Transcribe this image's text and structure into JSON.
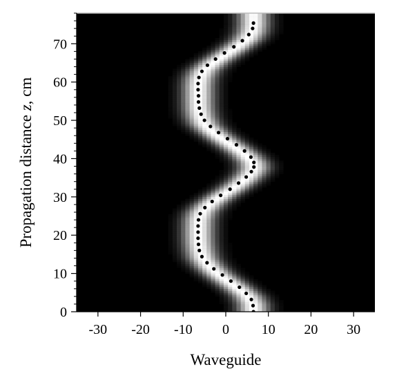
{
  "chart_data": {
    "type": "heatmap",
    "title": "",
    "xlabel": "Waveguide",
    "ylabel": "Propagation distance",
    "ylabel_italic": "z",
    "ylabel_unit": ", cm",
    "xlim": [
      -35,
      35
    ],
    "ylim": [
      0,
      78
    ],
    "x_ticks": [
      -30,
      -20,
      -10,
      0,
      10,
      20,
      30
    ],
    "x_tick_labels": [
      "-30",
      "-20",
      "-10",
      "0",
      "10",
      "20",
      "30"
    ],
    "y_ticks": [
      0,
      10,
      20,
      30,
      40,
      50,
      60,
      70
    ],
    "y_tick_labels": [
      "0",
      "10",
      "20",
      "30",
      "40",
      "50",
      "60",
      "70"
    ],
    "y_minor_step": 2,
    "grid": false,
    "colormap": [
      "#000000",
      "#ffffff"
    ],
    "beam_width": 2.6,
    "beam_path": [
      {
        "z": 0,
        "x": 6.5
      },
      {
        "z": 2,
        "x": 6.3
      },
      {
        "z": 4,
        "x": 5.2
      },
      {
        "z": 6,
        "x": 3.0
      },
      {
        "z": 8,
        "x": 0.5
      },
      {
        "z": 10,
        "x": -2.0
      },
      {
        "z": 12,
        "x": -4.0
      },
      {
        "z": 14,
        "x": -5.4
      },
      {
        "z": 16,
        "x": -6.0
      },
      {
        "z": 18,
        "x": -6.3
      },
      {
        "z": 20,
        "x": -6.4
      },
      {
        "z": 22,
        "x": -6.4
      },
      {
        "z": 24,
        "x": -6.3
      },
      {
        "z": 26,
        "x": -5.6
      },
      {
        "z": 28,
        "x": -3.9
      },
      {
        "z": 30,
        "x": -1.4
      },
      {
        "z": 32,
        "x": 1.4
      },
      {
        "z": 34,
        "x": 3.9
      },
      {
        "z": 36,
        "x": 5.8
      },
      {
        "z": 37.5,
        "x": 6.6
      },
      {
        "z": 39,
        "x": 6.3
      },
      {
        "z": 41,
        "x": 4.6
      },
      {
        "z": 43,
        "x": 2.1
      },
      {
        "z": 45,
        "x": -0.6
      },
      {
        "z": 47,
        "x": -3.1
      },
      {
        "z": 49,
        "x": -5.0
      },
      {
        "z": 51,
        "x": -5.9
      },
      {
        "z": 53,
        "x": -6.3
      },
      {
        "z": 55,
        "x": -6.4
      },
      {
        "z": 57,
        "x": -6.4
      },
      {
        "z": 59,
        "x": -6.4
      },
      {
        "z": 61,
        "x": -6.1
      },
      {
        "z": 63,
        "x": -5.1
      },
      {
        "z": 65,
        "x": -3.0
      },
      {
        "z": 67,
        "x": -0.3
      },
      {
        "z": 69,
        "x": 2.4
      },
      {
        "z": 71,
        "x": 4.8
      },
      {
        "z": 73,
        "x": 6.1
      },
      {
        "z": 75,
        "x": 6.5
      },
      {
        "z": 78,
        "x": 6.5
      }
    ],
    "series": [
      {
        "marker": "dot",
        "color": "#000000",
        "points": [
          {
            "x": 6.5,
            "y": 0
          },
          {
            "x": 6.4,
            "y": 1.6
          },
          {
            "x": 6.0,
            "y": 3.2
          },
          {
            "x": 4.8,
            "y": 4.8
          },
          {
            "x": 3.2,
            "y": 6.4
          },
          {
            "x": 1.2,
            "y": 8.0
          },
          {
            "x": -0.8,
            "y": 9.6
          },
          {
            "x": -2.8,
            "y": 11.2
          },
          {
            "x": -4.4,
            "y": 12.8
          },
          {
            "x": -5.6,
            "y": 14.4
          },
          {
            "x": -6.2,
            "y": 16.0
          },
          {
            "x": -6.4,
            "y": 17.6
          },
          {
            "x": -6.5,
            "y": 19.2
          },
          {
            "x": -6.5,
            "y": 20.8
          },
          {
            "x": -6.5,
            "y": 22.4
          },
          {
            "x": -6.4,
            "y": 24.0
          },
          {
            "x": -6.0,
            "y": 25.6
          },
          {
            "x": -4.9,
            "y": 27.2
          },
          {
            "x": -3.2,
            "y": 28.8
          },
          {
            "x": -1.2,
            "y": 30.4
          },
          {
            "x": 1.0,
            "y": 32.0
          },
          {
            "x": 3.0,
            "y": 33.6
          },
          {
            "x": 4.8,
            "y": 35.2
          },
          {
            "x": 6.0,
            "y": 36.6
          },
          {
            "x": 6.6,
            "y": 37.8
          },
          {
            "x": 6.6,
            "y": 39.0
          },
          {
            "x": 5.9,
            "y": 40.4
          },
          {
            "x": 4.4,
            "y": 42.0
          },
          {
            "x": 2.5,
            "y": 43.6
          },
          {
            "x": 0.4,
            "y": 45.2
          },
          {
            "x": -1.7,
            "y": 46.8
          },
          {
            "x": -3.6,
            "y": 48.4
          },
          {
            "x": -5.0,
            "y": 50.0
          },
          {
            "x": -5.8,
            "y": 51.6
          },
          {
            "x": -6.2,
            "y": 53.2
          },
          {
            "x": -6.4,
            "y": 54.8
          },
          {
            "x": -6.4,
            "y": 56.4
          },
          {
            "x": -6.5,
            "y": 58.0
          },
          {
            "x": -6.5,
            "y": 59.6
          },
          {
            "x": -6.3,
            "y": 61.2
          },
          {
            "x": -5.6,
            "y": 62.8
          },
          {
            "x": -4.3,
            "y": 64.4
          },
          {
            "x": -2.4,
            "y": 66.0
          },
          {
            "x": -0.3,
            "y": 67.6
          },
          {
            "x": 1.9,
            "y": 69.2
          },
          {
            "x": 3.9,
            "y": 70.8
          },
          {
            "x": 5.4,
            "y": 72.4
          },
          {
            "x": 6.3,
            "y": 74.0
          },
          {
            "x": 6.5,
            "y": 75.4
          }
        ]
      }
    ]
  }
}
